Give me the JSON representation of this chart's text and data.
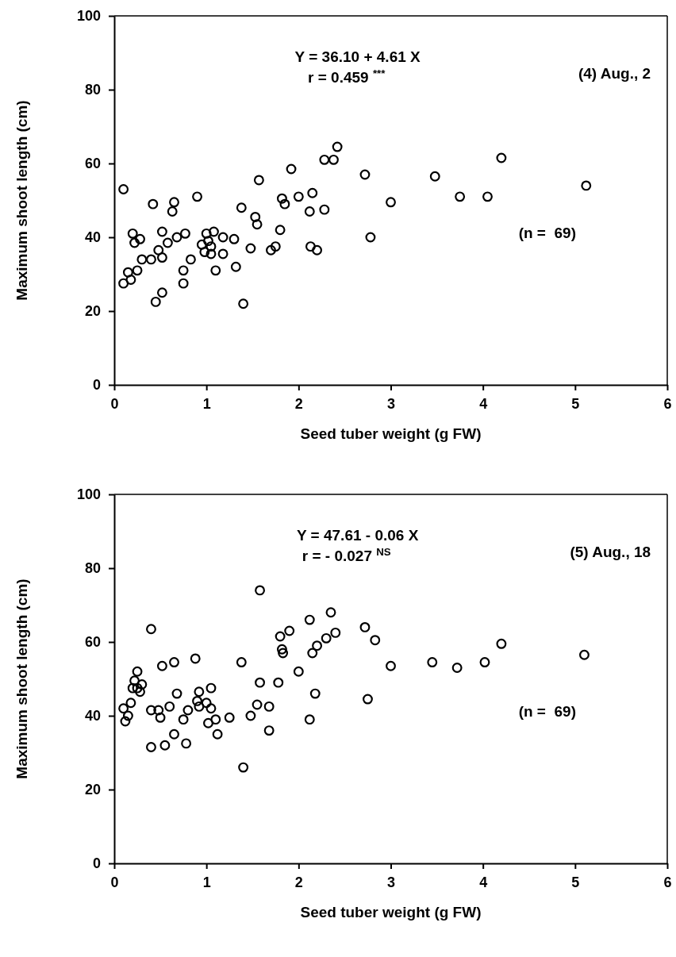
{
  "chart_data": [
    {
      "type": "scatter",
      "xlabel": "Seed tuber weight (g FW)",
      "ylabel": "Maximum shoot length (cm)",
      "xlim": [
        0,
        6
      ],
      "ylim": [
        0,
        100
      ],
      "xticks": [
        0,
        1,
        2,
        3,
        4,
        5,
        6
      ],
      "yticks": [
        0,
        20,
        40,
        60,
        80,
        100
      ],
      "marker": "circle",
      "annotations": [
        "Y = 36.10 + 4.61 X",
        "r = 0.459 $^{***}$",
        "(4) Aug., 2",
        "(n =  69)"
      ],
      "series": [
        {
          "color": "#000000",
          "x": [
            0.1,
            0.1,
            0.15,
            0.18,
            0.2,
            0.22,
            0.25,
            0.28,
            0.3,
            0.4,
            0.42,
            0.45,
            0.48,
            0.52,
            0.52,
            0.52,
            0.58,
            0.63,
            0.65,
            0.68,
            0.75,
            0.75,
            0.77,
            0.83,
            0.9,
            0.95,
            0.98,
            1.0,
            1.02,
            1.05,
            1.05,
            1.08,
            1.1,
            1.18,
            1.18,
            1.3,
            1.32,
            1.38,
            1.4,
            1.48,
            1.53,
            1.55,
            1.57,
            1.7,
            1.75,
            1.8,
            1.82,
            1.85,
            1.92,
            2.0,
            2.12,
            2.13,
            2.15,
            2.2,
            2.28,
            2.28,
            2.38,
            2.42,
            2.72,
            2.78,
            3.0,
            3.48,
            3.75,
            4.05,
            4.2,
            5.12
          ],
          "values": [
            53,
            27.5,
            30.5,
            28.5,
            41,
            38.5,
            31,
            39.5,
            34,
            34,
            49,
            22.5,
            36.5,
            41.5,
            34.5,
            25,
            38.5,
            47,
            49.5,
            40,
            31,
            27.5,
            41,
            34,
            51,
            38,
            36,
            41,
            39,
            35.5,
            37.5,
            41.5,
            31,
            40,
            35.5,
            39.5,
            32,
            48,
            22,
            37,
            45.5,
            43.5,
            55.5,
            36.5,
            37.5,
            42,
            50.5,
            49,
            58.5,
            51,
            47,
            37.5,
            52,
            36.5,
            47.5,
            61,
            61,
            64.5,
            57,
            40,
            49.5,
            56.5,
            51,
            51,
            61.5,
            54
          ]
        }
      ]
    },
    {
      "type": "scatter",
      "xlabel": "Seed tuber weight (g FW)",
      "ylabel": "Maximum shoot length (cm)",
      "xlim": [
        0,
        6
      ],
      "ylim": [
        0,
        100
      ],
      "xticks": [
        0,
        1,
        2,
        3,
        4,
        5,
        6
      ],
      "yticks": [
        0,
        20,
        40,
        60,
        80,
        100
      ],
      "marker": "circle",
      "annotations": [
        "Y = 47.61 - 0.06 X",
        "r = - 0.027 $^{NS}$",
        "(5) Aug., 18",
        "(n =  69)"
      ],
      "series": [
        {
          "color": "#000000",
          "x": [
            0.1,
            0.12,
            0.15,
            0.18,
            0.2,
            0.22,
            0.25,
            0.25,
            0.28,
            0.3,
            0.4,
            0.4,
            0.4,
            0.48,
            0.5,
            0.52,
            0.55,
            0.6,
            0.65,
            0.65,
            0.68,
            0.75,
            0.78,
            0.8,
            0.88,
            0.9,
            0.92,
            0.92,
            1.0,
            1.02,
            1.05,
            1.05,
            1.1,
            1.12,
            1.25,
            1.38,
            1.4,
            1.48,
            1.55,
            1.58,
            1.58,
            1.68,
            1.68,
            1.78,
            1.8,
            1.82,
            1.83,
            1.9,
            2.0,
            2.12,
            2.12,
            2.15,
            2.18,
            2.2,
            2.3,
            2.35,
            2.4,
            2.72,
            2.75,
            2.83,
            3.0,
            3.45,
            3.72,
            4.02,
            4.2,
            5.1
          ],
          "values": [
            42,
            38.5,
            40,
            43.5,
            47.5,
            49.5,
            52,
            47.5,
            46.5,
            48.5,
            63.5,
            31.5,
            41.5,
            41.5,
            39.5,
            53.5,
            32,
            42.5,
            54.5,
            35,
            46,
            39,
            32.5,
            41.5,
            55.5,
            44,
            46.5,
            42.5,
            43.5,
            38,
            47.5,
            42,
            39,
            35,
            39.5,
            54.5,
            26,
            40,
            43,
            49,
            74,
            42.5,
            36,
            49,
            61.5,
            58,
            57,
            63,
            52,
            39,
            66,
            57,
            46,
            59,
            61,
            68,
            62.5,
            64,
            44.5,
            60.5,
            53.5,
            54.5,
            53,
            54.5,
            59.5,
            56.5
          ]
        }
      ]
    }
  ]
}
